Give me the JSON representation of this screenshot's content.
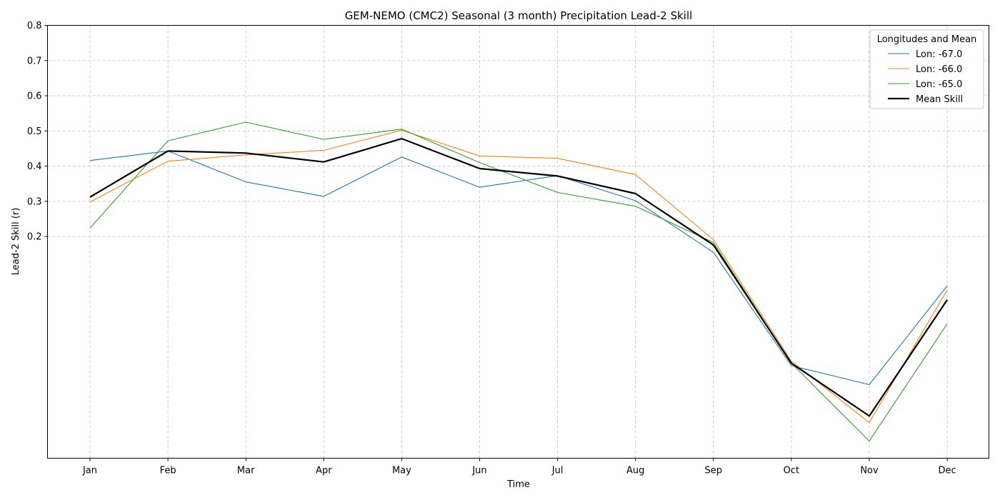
{
  "chart_data": {
    "type": "line",
    "title": "GEM-NEMO (CMC2) Seasonal (3 month) Precipitation Lead-2 Skill",
    "xlabel": "Time",
    "ylabel": "Lead-2 Skill (r)",
    "categories": [
      "Jan",
      "Feb",
      "Mar",
      "Apr",
      "May",
      "Jun",
      "Jul",
      "Aug",
      "Sep",
      "Oct",
      "Nov",
      "Dec"
    ],
    "ylim": [
      -0.43,
      0.8
    ],
    "yticks": [
      0.2,
      0.3,
      0.4,
      0.5,
      0.6,
      0.7,
      0.8
    ],
    "grid": true,
    "legend": {
      "title": "Longitudes and Mean",
      "placement": "top-right"
    },
    "series": [
      {
        "name": "Lon: -67.0",
        "color": "#1f77b4",
        "width": "thin",
        "values": [
          0.416,
          0.443,
          0.355,
          0.314,
          0.426,
          0.34,
          0.373,
          0.302,
          0.155,
          -0.167,
          -0.221,
          0.06
        ]
      },
      {
        "name": "Lon: -66.0",
        "color": "#ff7f0e",
        "width": "thin",
        "values": [
          0.298,
          0.414,
          0.432,
          0.445,
          0.502,
          0.429,
          0.422,
          0.376,
          0.191,
          -0.154,
          -0.329,
          0.048
        ]
      },
      {
        "name": "Lon: -65.0",
        "color": "#2ca02c",
        "width": "thin",
        "values": [
          0.224,
          0.472,
          0.525,
          0.476,
          0.505,
          0.41,
          0.325,
          0.286,
          0.183,
          -0.16,
          -0.381,
          -0.048
        ]
      },
      {
        "name": "Mean Skill",
        "color": "#000000",
        "width": "thick",
        "values": [
          0.312,
          0.443,
          0.437,
          0.412,
          0.478,
          0.393,
          0.372,
          0.322,
          0.176,
          -0.16,
          -0.31,
          0.02
        ]
      }
    ]
  }
}
